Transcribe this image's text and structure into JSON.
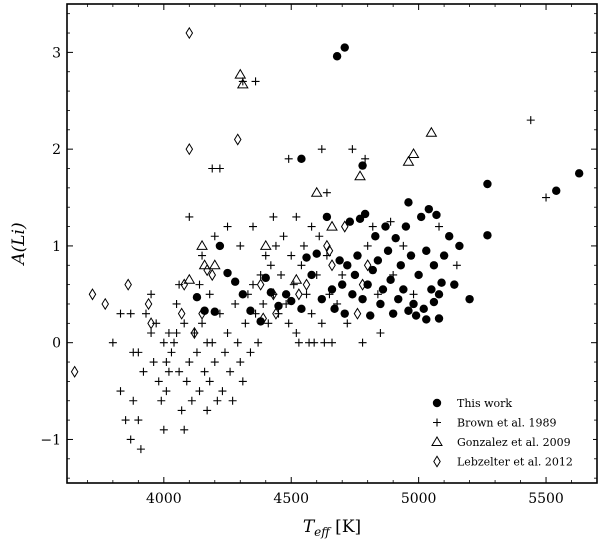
{
  "chart_data": {
    "type": "scatter",
    "xlabel": "T_eff [K]",
    "xlabel_main": "T",
    "xlabel_sub": "eff",
    "xlabel_unit": " [K]",
    "ylabel": "A(Li)",
    "xlim": [
      3620,
      5700
    ],
    "ylim": [
      -1.45,
      3.5
    ],
    "xticks": [
      4000,
      4500,
      5000,
      5500
    ],
    "xtick_labels": [
      "4000",
      "4500",
      "5000",
      "5500"
    ],
    "yticks": [
      -1,
      0,
      1,
      2,
      3
    ],
    "ytick_labels": [
      "−1",
      "0",
      "1",
      "2",
      "3"
    ],
    "grid": false,
    "legend_position": "bottom-right",
    "series": [
      {
        "name": "This work",
        "marker": "filled-circle",
        "points": [
          [
            4710,
            3.05
          ],
          [
            4680,
            2.96
          ],
          [
            4540,
            1.9
          ],
          [
            4780,
            1.83
          ],
          [
            5630,
            1.75
          ],
          [
            5270,
            1.64
          ],
          [
            5540,
            1.57
          ],
          [
            5270,
            1.11
          ],
          [
            4220,
            1.0
          ],
          [
            4130,
            0.47
          ],
          [
            4160,
            0.33
          ],
          [
            4200,
            0.32
          ],
          [
            4250,
            0.72
          ],
          [
            4280,
            0.63
          ],
          [
            4310,
            0.5
          ],
          [
            4340,
            0.33
          ],
          [
            4380,
            0.22
          ],
          [
            4400,
            0.67
          ],
          [
            4420,
            0.52
          ],
          [
            4450,
            0.38
          ],
          [
            4480,
            0.5
          ],
          [
            4500,
            0.43
          ],
          [
            4540,
            0.35
          ],
          [
            4560,
            0.88
          ],
          [
            4580,
            0.7
          ],
          [
            4600,
            0.92
          ],
          [
            4620,
            0.45
          ],
          [
            4640,
            1.3
          ],
          [
            4660,
            0.55
          ],
          [
            4670,
            0.35
          ],
          [
            4690,
            0.85
          ],
          [
            4700,
            0.6
          ],
          [
            4710,
            0.3
          ],
          [
            4720,
            0.8
          ],
          [
            4730,
            1.25
          ],
          [
            4740,
            0.5
          ],
          [
            4750,
            0.7
          ],
          [
            4760,
            0.9
          ],
          [
            4770,
            1.28
          ],
          [
            4780,
            0.45
          ],
          [
            4790,
            1.33
          ],
          [
            4800,
            0.6
          ],
          [
            4810,
            0.28
          ],
          [
            4820,
            0.75
          ],
          [
            4830,
            1.1
          ],
          [
            4840,
            0.85
          ],
          [
            4850,
            0.4
          ],
          [
            4860,
            0.55
          ],
          [
            4870,
            1.2
          ],
          [
            4880,
            0.95
          ],
          [
            4890,
            0.65
          ],
          [
            4900,
            0.3
          ],
          [
            4910,
            1.08
          ],
          [
            4920,
            0.45
          ],
          [
            4930,
            0.8
          ],
          [
            4940,
            0.55
          ],
          [
            4950,
            1.2
          ],
          [
            4960,
            1.45
          ],
          [
            4970,
            0.9
          ],
          [
            4980,
            0.4
          ],
          [
            4990,
            0.28
          ],
          [
            5000,
            0.7
          ],
          [
            5010,
            1.3
          ],
          [
            5020,
            0.35
          ],
          [
            5030,
            0.95
          ],
          [
            5040,
            1.38
          ],
          [
            5050,
            0.55
          ],
          [
            5060,
            0.8
          ],
          [
            5070,
            1.32
          ],
          [
            5080,
            0.25
          ],
          [
            5090,
            0.62
          ],
          [
            5100,
            0.9
          ],
          [
            5120,
            1.1
          ],
          [
            5140,
            0.6
          ],
          [
            5160,
            1.0
          ],
          [
            5200,
            0.45
          ],
          [
            4960,
            0.33
          ],
          [
            5030,
            0.24
          ],
          [
            5060,
            0.42
          ],
          [
            5080,
            0.5
          ]
        ]
      },
      {
        "name": "Brown et al. 1989",
        "marker": "plus",
        "points": [
          [
            5440,
            2.3
          ],
          [
            4310,
            2.7
          ],
          [
            4360,
            2.7
          ],
          [
            4490,
            1.9
          ],
          [
            4620,
            2.0
          ],
          [
            4740,
            2.0
          ],
          [
            4790,
            1.9
          ],
          [
            4190,
            1.8
          ],
          [
            4220,
            1.8
          ],
          [
            4640,
            1.55
          ],
          [
            5500,
            1.5
          ],
          [
            4820,
            1.2
          ],
          [
            4890,
            1.25
          ],
          [
            5080,
            1.2
          ],
          [
            5150,
            0.8
          ],
          [
            3800,
            0.0
          ],
          [
            3830,
            -0.5
          ],
          [
            3850,
            -0.8
          ],
          [
            3870,
            -1.0
          ],
          [
            3880,
            -0.6
          ],
          [
            3900,
            -0.8
          ],
          [
            3910,
            -1.1
          ],
          [
            3880,
            -0.1
          ],
          [
            3900,
            -0.1
          ],
          [
            3830,
            0.3
          ],
          [
            3870,
            0.3
          ],
          [
            3930,
            0.3
          ],
          [
            3950,
            0.1
          ],
          [
            3960,
            -0.2
          ],
          [
            3980,
            -0.4
          ],
          [
            3990,
            -0.6
          ],
          [
            4000,
            -0.9
          ],
          [
            4010,
            -0.5
          ],
          [
            4020,
            -0.3
          ],
          [
            4030,
            -0.1
          ],
          [
            4040,
            0.0
          ],
          [
            4050,
            0.1
          ],
          [
            4060,
            -0.3
          ],
          [
            4070,
            -0.7
          ],
          [
            4080,
            -0.9
          ],
          [
            4090,
            -0.4
          ],
          [
            4100,
            -0.2
          ],
          [
            4110,
            -0.6
          ],
          [
            4120,
            0.1
          ],
          [
            4130,
            -0.1
          ],
          [
            4140,
            -0.5
          ],
          [
            4150,
            0.2
          ],
          [
            4160,
            -0.3
          ],
          [
            4170,
            -0.7
          ],
          [
            4180,
            -0.4
          ],
          [
            4190,
            0.0
          ],
          [
            4200,
            -0.2
          ],
          [
            4210,
            -0.6
          ],
          [
            4220,
            0.3
          ],
          [
            4230,
            -0.5
          ],
          [
            4240,
            -0.1
          ],
          [
            4250,
            0.1
          ],
          [
            4260,
            -0.3
          ],
          [
            4270,
            -0.6
          ],
          [
            4280,
            0.4
          ],
          [
            4290,
            0.0
          ],
          [
            4300,
            -0.2
          ],
          [
            4310,
            -0.4
          ],
          [
            4320,
            0.2
          ],
          [
            4330,
            0.5
          ],
          [
            4340,
            -0.1
          ],
          [
            4350,
            0.6
          ],
          [
            4360,
            0.3
          ],
          [
            4370,
            0.0
          ],
          [
            4380,
            0.7
          ],
          [
            4390,
            0.4
          ],
          [
            4400,
            0.9
          ],
          [
            4410,
            0.2
          ],
          [
            4420,
            0.8
          ],
          [
            4430,
            0.5
          ],
          [
            4440,
            1.0
          ],
          [
            4450,
            0.3
          ],
          [
            4460,
            0.7
          ],
          [
            4470,
            1.1
          ],
          [
            4480,
            0.4
          ],
          [
            4490,
            0.2
          ],
          [
            4500,
            0.9
          ],
          [
            4510,
            0.6
          ],
          [
            4520,
            0.1
          ],
          [
            4530,
            0.0
          ],
          [
            4540,
            0.8
          ],
          [
            4550,
            1.0
          ],
          [
            4560,
            0.5
          ],
          [
            4570,
            0.0
          ],
          [
            4580,
            0.3
          ],
          [
            4590,
            0.0
          ],
          [
            4600,
            0.7
          ],
          [
            4610,
            1.1
          ],
          [
            4620,
            0.2
          ],
          [
            4630,
            0.0
          ],
          [
            4640,
            0.9
          ],
          [
            4650,
            0.5
          ],
          [
            4660,
            0.0
          ],
          [
            4680,
            0.4
          ],
          [
            4700,
            0.7
          ],
          [
            4720,
            0.2
          ],
          [
            4760,
            0.9
          ],
          [
            4800,
            1.0
          ],
          [
            4780,
            0.0
          ],
          [
            4840,
            0.5
          ],
          [
            4900,
            0.7
          ],
          [
            4940,
            1.0
          ],
          [
            4980,
            0.5
          ],
          [
            4850,
            0.1
          ],
          [
            4100,
            1.3
          ],
          [
            4150,
            0.9
          ],
          [
            4200,
            1.1
          ],
          [
            4250,
            1.2
          ],
          [
            4300,
            1.0
          ],
          [
            4350,
            1.2
          ],
          [
            4430,
            1.3
          ],
          [
            4520,
            1.3
          ],
          [
            4580,
            1.2
          ],
          [
            3950,
            0.5
          ],
          [
            3970,
            0.2
          ],
          [
            4050,
            0.4
          ],
          [
            4080,
            0.2
          ],
          [
            4010,
            -0.2
          ],
          [
            4140,
            0.6
          ],
          [
            3920,
            -0.3
          ],
          [
            4060,
            0.6
          ],
          [
            4180,
            0.5
          ],
          [
            4020,
            0.1
          ],
          [
            4000,
            0.0
          ],
          [
            4170,
            0.0
          ]
        ]
      },
      {
        "name": "Gonzalez et al. 2009",
        "marker": "open-triangle",
        "points": [
          [
            4300,
            2.77
          ],
          [
            4310,
            2.67
          ],
          [
            5050,
            2.17
          ],
          [
            4960,
            1.87
          ],
          [
            4980,
            1.95
          ],
          [
            4770,
            1.72
          ],
          [
            4600,
            1.55
          ],
          [
            4660,
            1.2
          ],
          [
            4150,
            1.0
          ],
          [
            4160,
            0.8
          ],
          [
            4200,
            0.8
          ],
          [
            4100,
            0.65
          ],
          [
            4520,
            0.65
          ],
          [
            4400,
            1.0
          ]
        ]
      },
      {
        "name": "Lebzelter et al. 2012",
        "marker": "open-diamond",
        "points": [
          [
            4100,
            3.2
          ],
          [
            4290,
            2.1
          ],
          [
            4100,
            2.0
          ],
          [
            3650,
            -0.3
          ],
          [
            3720,
            0.5
          ],
          [
            3770,
            0.4
          ],
          [
            3860,
            0.6
          ],
          [
            3940,
            0.4
          ],
          [
            3950,
            0.2
          ],
          [
            4070,
            0.3
          ],
          [
            4080,
            0.6
          ],
          [
            4150,
            0.3
          ],
          [
            4170,
            0.75
          ],
          [
            4190,
            0.7
          ],
          [
            4380,
            0.6
          ],
          [
            4390,
            0.25
          ],
          [
            4430,
            0.5
          ],
          [
            4530,
            0.5
          ],
          [
            4640,
            1.0
          ],
          [
            4650,
            0.95
          ],
          [
            4660,
            0.8
          ],
          [
            4710,
            1.2
          ],
          [
            4760,
            0.3
          ],
          [
            4780,
            0.6
          ],
          [
            4800,
            0.8
          ],
          [
            4440,
            0.3
          ],
          [
            4120,
            0.1
          ],
          [
            4560,
            0.6
          ]
        ]
      }
    ]
  }
}
